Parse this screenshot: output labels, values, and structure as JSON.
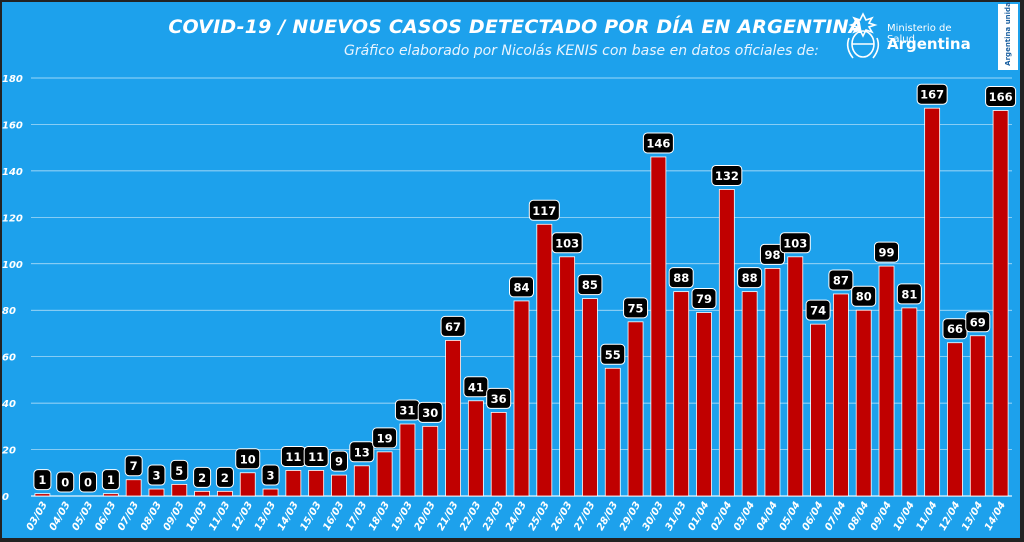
{
  "header": {
    "title": "COVID-19  /  NUEVOS CASOS DETECTADO POR DÍA EN ARGENTINA",
    "subtitle": "Gráfico elaborado por Nicolás KENIS con base en datos oficiales de:",
    "logo_ministry": "Ministerio de Salud",
    "logo_country": "Argentina",
    "badge": "Argentina unida"
  },
  "colors": {
    "background": "#1da1ec",
    "bar": "#c00000",
    "label_bg": "#000000",
    "label_text": "#ffffff",
    "grid": "#ffffff"
  },
  "chart_data": {
    "type": "bar",
    "title": "COVID-19  /  NUEVOS CASOS DETECTADO POR DÍA EN ARGENTINA",
    "xlabel": "",
    "ylabel": "",
    "ylim": [
      0,
      180
    ],
    "yticks": [
      0,
      20,
      40,
      60,
      80,
      100,
      120,
      140,
      160,
      180
    ],
    "grid": true,
    "legend": "none",
    "categories": [
      "03/03",
      "04/03",
      "05/03",
      "06/03",
      "07/03",
      "08/03",
      "09/03",
      "10/03",
      "11/03",
      "12/03",
      "13/03",
      "14/03",
      "15/03",
      "16/03",
      "17/03",
      "18/03",
      "19/03",
      "20/03",
      "21/03",
      "22/03",
      "23/03",
      "24/03",
      "25/03",
      "26/03",
      "27/03",
      "28/03",
      "29/03",
      "30/03",
      "31/03",
      "01/04",
      "02/04",
      "03/04",
      "04/04",
      "05/04",
      "06/04",
      "07/04",
      "08/04",
      "09/04",
      "10/04",
      "11/04",
      "12/04",
      "13/04",
      "14/04"
    ],
    "values": [
      1,
      0,
      0,
      1,
      7,
      3,
      5,
      2,
      2,
      10,
      3,
      11,
      11,
      9,
      13,
      19,
      31,
      30,
      67,
      41,
      36,
      84,
      117,
      103,
      85,
      55,
      75,
      146,
      88,
      79,
      132,
      88,
      98,
      103,
      74,
      87,
      80,
      99,
      81,
      167,
      66,
      69,
      166
    ]
  }
}
